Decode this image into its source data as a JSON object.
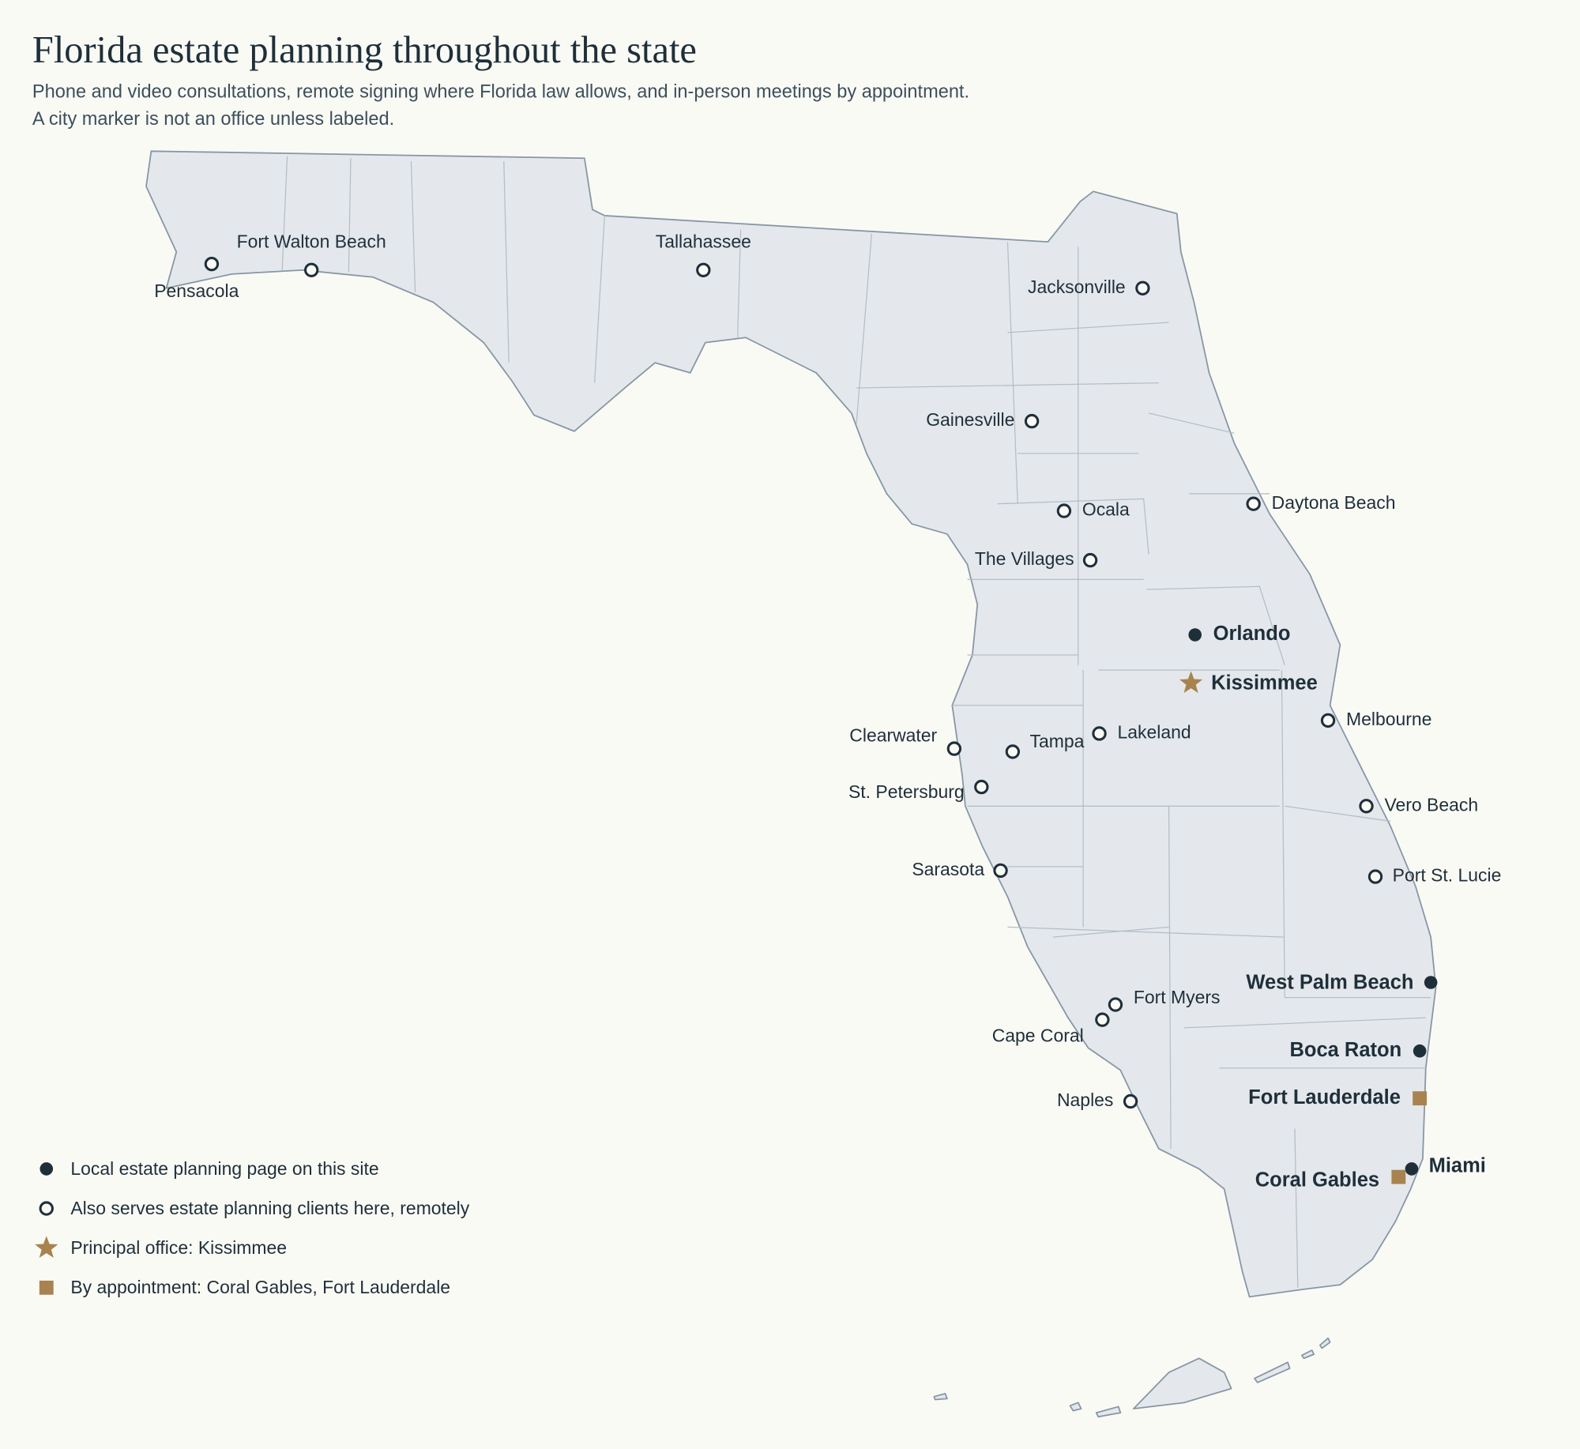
{
  "header": {
    "title": "Florida estate planning throughout the state",
    "subtitle": [
      "Phone and video consultations, remote signing where Florida law allows, and in-person meetings by appointment.",
      "A city marker is not an office unless labeled."
    ]
  },
  "cities": [
    {
      "name": "Pensacola",
      "marker": "open"
    },
    {
      "name": "Fort Walton Beach",
      "marker": "open"
    },
    {
      "name": "Tallahassee",
      "marker": "open"
    },
    {
      "name": "Jacksonville",
      "marker": "open"
    },
    {
      "name": "Gainesville",
      "marker": "open"
    },
    {
      "name": "Daytona Beach",
      "marker": "open"
    },
    {
      "name": "Ocala",
      "marker": "open"
    },
    {
      "name": "The Villages",
      "marker": "open"
    },
    {
      "name": "Orlando",
      "marker": "filled"
    },
    {
      "name": "Kissimmee",
      "marker": "star"
    },
    {
      "name": "Melbourne",
      "marker": "open"
    },
    {
      "name": "Lakeland",
      "marker": "open"
    },
    {
      "name": "Clearwater",
      "marker": "open"
    },
    {
      "name": "Tampa",
      "marker": "open"
    },
    {
      "name": "St. Petersburg",
      "marker": "open"
    },
    {
      "name": "Vero Beach",
      "marker": "open"
    },
    {
      "name": "Sarasota",
      "marker": "open"
    },
    {
      "name": "Port St. Lucie",
      "marker": "open"
    },
    {
      "name": "West Palm Beach",
      "marker": "filled"
    },
    {
      "name": "Fort Myers",
      "marker": "open"
    },
    {
      "name": "Cape Coral",
      "marker": "open"
    },
    {
      "name": "Boca Raton",
      "marker": "filled"
    },
    {
      "name": "Naples",
      "marker": "open"
    },
    {
      "name": "Fort Lauderdale",
      "marker": "square"
    },
    {
      "name": "Miami",
      "marker": "filled"
    },
    {
      "name": "Coral Gables",
      "marker": "square"
    }
  ],
  "legend": [
    {
      "label": "Local estate planning page on this site",
      "marker": "filled"
    },
    {
      "label": "Also serves estate planning clients here, remotely",
      "marker": "open"
    },
    {
      "label": "Principal office: Kissimmee",
      "marker": "star"
    },
    {
      "label": "By appointment: Coral Gables, Fort Lauderdale",
      "marker": "square"
    }
  ]
}
